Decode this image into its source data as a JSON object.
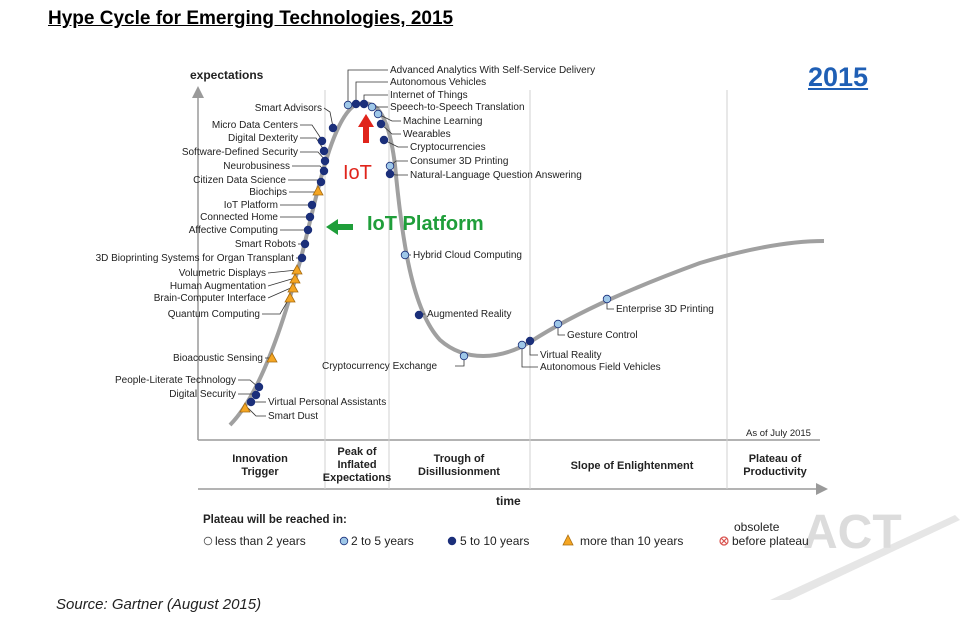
{
  "page": {
    "title": "Hype Cycle for Emerging Technologies, 2015",
    "year_label": "2015",
    "source": "Source: Gartner (August 2015)"
  },
  "axes": {
    "y_label": "expectations",
    "x_label": "time",
    "as_of": "As of July 2015"
  },
  "phases": [
    {
      "lines": [
        "Innovation",
        "Trigger"
      ]
    },
    {
      "lines": [
        "Peak of",
        "Inflated",
        "Expectations"
      ]
    },
    {
      "lines": [
        "Trough of",
        "Disillusionment"
      ]
    },
    {
      "lines": [
        "Slope of Enlightenment"
      ]
    },
    {
      "lines": [
        "Plateau of",
        "Productivity"
      ]
    }
  ],
  "legend": {
    "title": "Plateau will be reached in:",
    "items": [
      {
        "label": "less than 2 years",
        "marker": "circle",
        "color": "#ffffff"
      },
      {
        "label": "2 to 5 years",
        "marker": "circle",
        "color": "#9ec7e8"
      },
      {
        "label": "5 to 10 years",
        "marker": "circle",
        "color": "#1b2f7a"
      },
      {
        "label": "more than 10 years",
        "marker": "triangle",
        "color": "#f5a623"
      }
    ],
    "obsolete": [
      "obsolete",
      "before plateau"
    ],
    "obsolete_color": "#d9534f"
  },
  "annotations": {
    "iot": "IoT",
    "iot_platform": "IoT Platform",
    "iot_color": "#e0241b",
    "platform_color": "#1f9e3a"
  },
  "watermark": "ACT",
  "colors": {
    "curve": "#a0a0a0",
    "dark_marker": "#1b2f7a",
    "light_marker": "#9ec7e8",
    "triangle": "#f5a623"
  },
  "technologies": {
    "advanced_analytics": "Advanced Analytics With Self-Service Delivery",
    "autonomous_vehicles": "Autonomous Vehicles",
    "internet_of_things": "Internet of Things",
    "speech_to_speech": "Speech-to-Speech Translation",
    "machine_learning": "Machine Learning",
    "wearables": "Wearables",
    "cryptocurrencies": "Cryptocurrencies",
    "consumer_3d_printing": "Consumer 3D Printing",
    "nlqa": "Natural-Language Question Answering",
    "smart_advisors": "Smart Advisors",
    "micro_data_centers": "Micro Data Centers",
    "digital_dexterity": "Digital Dexterity",
    "software_defined_security": "Software-Defined Security",
    "neurobusiness": "Neurobusiness",
    "citizen_data_science": "Citizen Data Science",
    "biochips": "Biochips",
    "iot_platform": "IoT Platform",
    "connected_home": "Connected Home",
    "affective_computing": "Affective Computing",
    "smart_robots": "Smart Robots",
    "bioprinting": "3D Bioprinting Systems for Organ Transplant",
    "volumetric_displays": "Volumetric Displays",
    "human_augmentation": "Human Augmentation",
    "bci": "Brain-Computer Interface",
    "quantum_computing": "Quantum Computing",
    "bioacoustic_sensing": "Bioacoustic Sensing",
    "people_literate": "People-Literate Technology",
    "digital_security": "Digital Security",
    "virtual_personal_assistants": "Virtual Personal Assistants",
    "smart_dust": "Smart Dust",
    "hybrid_cloud": "Hybrid Cloud Computing",
    "augmented_reality": "Augmented Reality",
    "crypto_exchange": "Cryptocurrency Exchange",
    "virtual_reality": "Virtual Reality",
    "autonomous_field_vehicles": "Autonomous Field Vehicles",
    "gesture_control": "Gesture Control",
    "enterprise_3d_printing": "Enterprise 3D Printing"
  }
}
